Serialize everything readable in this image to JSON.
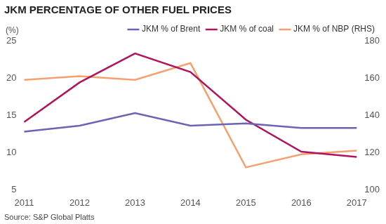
{
  "chart_data": {
    "type": "line",
    "title": "JKM PERCENTAGE OF OTHER FUEL PRICES",
    "ylabel": "(%)",
    "source": "Source: S&P Global Platts",
    "categories": [
      "2011",
      "2012",
      "2013",
      "2014",
      "2015",
      "2016",
      "2017"
    ],
    "series": [
      {
        "name": "JKM % of Brent",
        "color": "#6b63b5",
        "values": [
          12.8,
          13.6,
          15.3,
          13.6,
          13.9,
          13.3,
          13.3
        ]
      },
      {
        "name": "JKM % of coal",
        "color": "#b0145e",
        "values": [
          14.1,
          19.4,
          23.3,
          20.8,
          14.4,
          10.1,
          9.4
        ]
      },
      {
        "name": "JKM % of NBP (RHS)",
        "color": "#f5a06f",
        "axis": "y2",
        "values": [
          159,
          161,
          159,
          168,
          112,
          119,
          121
        ]
      }
    ],
    "ylim": [
      5,
      25
    ],
    "yticks": [
      5,
      10,
      15,
      20,
      25
    ],
    "y2lim": [
      100,
      180
    ],
    "y2ticks": [
      100,
      120,
      140,
      160,
      180
    ],
    "grid": false,
    "legend": "top"
  }
}
